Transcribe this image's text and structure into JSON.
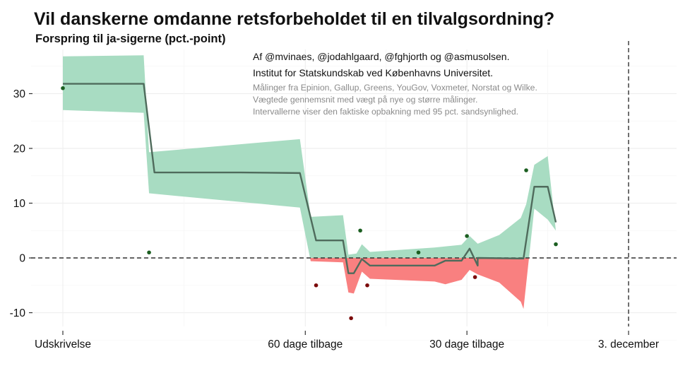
{
  "chart_data": {
    "type": "line",
    "title": "Vil danskerne omdanne retsforbeholdet til en tilvalgsordning?",
    "subtitle": "Forspring til ja-sigerne (pct.-point)",
    "ylabel": "Forspring til ja-sigerne (pct.-point)",
    "xlabel": "",
    "x_unit": "dage før 3. december",
    "xlim": [
      109,
      -10
    ],
    "ylim": [
      -13,
      37
    ],
    "grid": true,
    "y_ticks": [
      -10,
      0,
      10,
      20,
      30
    ],
    "y_tick_labels": [
      "-10",
      "0",
      "10",
      "20",
      "30"
    ],
    "x_ticks": [
      105,
      60,
      30,
      0
    ],
    "x_tick_labels": [
      "Udskrivelse",
      "60 dage tilbage",
      "30 dage tilbage",
      "3. december"
    ],
    "reference_lines": {
      "horizontal_y": 0,
      "vertical_x": 0
    },
    "colors": {
      "ci_positive": "#a8dcc2",
      "ci_negative": "#f98080",
      "line": "#4f6b5c",
      "point_positive": "#1b5e20",
      "point_negative": "#7b0a0a",
      "grid": "#efefef"
    },
    "credits": [
      "Af @mvinaes, @jodahlgaard, @fghjorth og @asmusolsen.",
      "Institut for Statskundskab ved Københavns Universitet.",
      "Målinger fra Epinion, Gallup, Greens, YouGov, Voxmeter, Norstat og Wilke.",
      "Vægtede gennemsnit med vægt på nye og større målinger.",
      "Intervallerne viser den faktiske opbakning med 95 pct. sandsynlighed."
    ],
    "series": [
      {
        "name": "Vægtet gennemsnit",
        "points": [
          {
            "x": 105,
            "y": 31.8
          },
          {
            "x": 90,
            "y": 31.8
          },
          {
            "x": 88,
            "y": 15.6
          },
          {
            "x": 72,
            "y": 15.6
          },
          {
            "x": 61,
            "y": 15.5
          },
          {
            "x": 58,
            "y": 3.2
          },
          {
            "x": 53,
            "y": 3.2
          },
          {
            "x": 52,
            "y": -2.8
          },
          {
            "x": 51,
            "y": -2.8
          },
          {
            "x": 49.5,
            "y": -0.2
          },
          {
            "x": 48,
            "y": -1.4
          },
          {
            "x": 38,
            "y": -1.4
          },
          {
            "x": 28,
            "y": -1.4
          },
          {
            "x": 36,
            "y": -1.4
          },
          {
            "x": 34,
            "y": -0.5
          },
          {
            "x": 31,
            "y": -0.5
          },
          {
            "x": 29.5,
            "y": 1.7
          },
          {
            "x": 28,
            "y": 0
          },
          {
            "x": 20,
            "y": -0.1
          },
          {
            "x": 19.5,
            "y": -0.1
          },
          {
            "x": 17.5,
            "y": 13.0
          },
          {
            "x": 16,
            "y": 13.0
          },
          {
            "x": 15,
            "y": 13.0
          },
          {
            "x": 13.5,
            "y": 6.5
          }
        ]
      }
    ],
    "ci_band": {
      "upper": [
        {
          "x": 105,
          "y": 36.8
        },
        {
          "x": 90,
          "y": 37.0
        },
        {
          "x": 89,
          "y": 19.3
        },
        {
          "x": 61,
          "y": 21.7
        },
        {
          "x": 59,
          "y": 7.5
        },
        {
          "x": 53,
          "y": 7.8
        },
        {
          "x": 52,
          "y": 0.6
        },
        {
          "x": 50.5,
          "y": 0.8
        },
        {
          "x": 49.5,
          "y": 2.5
        },
        {
          "x": 48,
          "y": 1.1
        },
        {
          "x": 36,
          "y": 1.9
        },
        {
          "x": 31,
          "y": 2.4
        },
        {
          "x": 29.5,
          "y": 4.0
        },
        {
          "x": 28,
          "y": 2.6
        },
        {
          "x": 24,
          "y": 4.2
        },
        {
          "x": 20,
          "y": 7.3
        },
        {
          "x": 19,
          "y": 9.8
        },
        {
          "x": 17.5,
          "y": 17.0
        },
        {
          "x": 15,
          "y": 18.6
        },
        {
          "x": 13.5,
          "y": 5.0
        }
      ],
      "lower": [
        {
          "x": 105,
          "y": 27.0
        },
        {
          "x": 90,
          "y": 26.5
        },
        {
          "x": 89,
          "y": 11.8
        },
        {
          "x": 61,
          "y": 9.2
        },
        {
          "x": 59,
          "y": -0.6
        },
        {
          "x": 53,
          "y": -0.8
        },
        {
          "x": 52,
          "y": -6.3
        },
        {
          "x": 51,
          "y": -6.5
        },
        {
          "x": 49.5,
          "y": -2.5
        },
        {
          "x": 48,
          "y": -3.8
        },
        {
          "x": 36,
          "y": -4.3
        },
        {
          "x": 34,
          "y": -4.8
        },
        {
          "x": 31,
          "y": -4.0
        },
        {
          "x": 29.5,
          "y": -2.2
        },
        {
          "x": 28,
          "y": -3.0
        },
        {
          "x": 24,
          "y": -4.5
        },
        {
          "x": 20,
          "y": -8.0
        },
        {
          "x": 19.5,
          "y": -9.3
        },
        {
          "x": 17.5,
          "y": 9.0
        },
        {
          "x": 15,
          "y": 7.0
        },
        {
          "x": 13.5,
          "y": 5.0
        }
      ]
    },
    "polls": [
      {
        "x": 105,
        "y": 31.0
      },
      {
        "x": 89,
        "y": 1.0
      },
      {
        "x": 58,
        "y": -5.0
      },
      {
        "x": 51.5,
        "y": -11.0
      },
      {
        "x": 49.8,
        "y": 5.0
      },
      {
        "x": 48.5,
        "y": -5.0
      },
      {
        "x": 39,
        "y": 1.0
      },
      {
        "x": 30,
        "y": 4.0
      },
      {
        "x": 28.5,
        "y": -3.5
      },
      {
        "x": 19,
        "y": 16.0
      },
      {
        "x": 13.5,
        "y": 2.5
      }
    ]
  }
}
